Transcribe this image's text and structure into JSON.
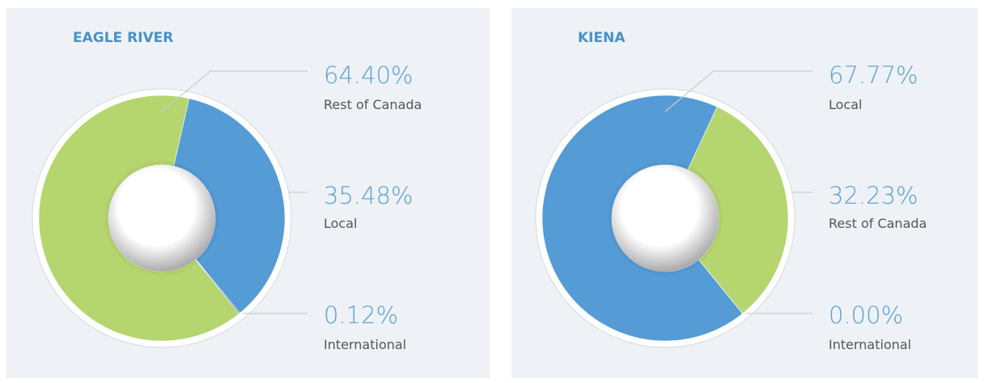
{
  "chart_data": [
    {
      "type": "pie",
      "title": "EAGLE RIVER",
      "categories": [
        "Rest of Canada",
        "Local",
        "International"
      ],
      "values": [
        64.4,
        35.48,
        0.12
      ],
      "value_labels": [
        "64.40%",
        "35.48%",
        "0.12%"
      ],
      "colors": [
        "#b5d56f",
        "#559bd6",
        "#1f3a5f"
      ]
    },
    {
      "type": "pie",
      "title": "KIENA",
      "categories": [
        "Local",
        "Rest of Canada",
        "International"
      ],
      "values": [
        67.77,
        32.23,
        0
      ],
      "value_labels": [
        "67.77%",
        "32.23%",
        "0.00%"
      ],
      "colors": [
        "#559bd6",
        "#b5d56f",
        "#1f3a5f"
      ]
    }
  ]
}
